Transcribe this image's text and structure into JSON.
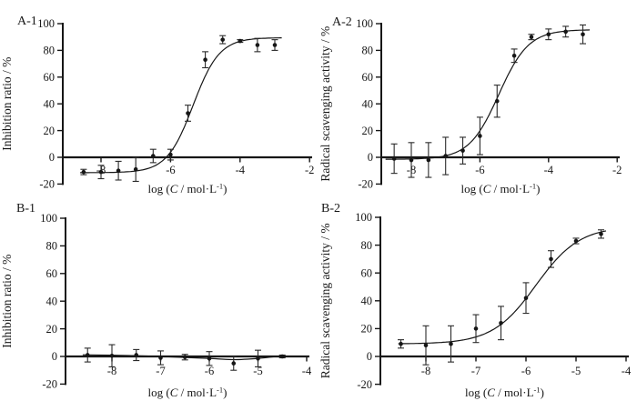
{
  "figure": {
    "background": "#ffffff",
    "foreground": "#161616",
    "x_axis_label": {
      "text": "log (C / mol·L-1)",
      "prefix": "log (",
      "variable": "C",
      "middle": " / mol·L",
      "superscript": "-1",
      "suffix": ")"
    }
  },
  "chart_data": [
    {
      "id": "A-1",
      "type": "scatter",
      "panel_label": "A-1",
      "ylabel": "Inhibition ratio / %",
      "xlabel": "log (C / mol·L-1)",
      "xlim": [
        -9.1,
        -1.9
      ],
      "x_ticks": [
        -8,
        -6,
        -4,
        -2
      ],
      "ylim": [
        -20,
        100
      ],
      "y_ticks": [
        100,
        80,
        60,
        40,
        20,
        0,
        -20
      ],
      "x": [
        -8.5,
        -8.0,
        -7.5,
        -7.0,
        -6.5,
        -6.0,
        -5.5,
        -5.0,
        -4.5,
        -4.0,
        -3.5,
        -3.0
      ],
      "y": [
        -11,
        -11,
        -10,
        -9,
        1,
        2,
        33,
        73,
        88,
        87,
        84,
        84
      ],
      "yerr": [
        2,
        5,
        7,
        9,
        5,
        4,
        6,
        6,
        3,
        1,
        5,
        4
      ],
      "fit": {
        "kind": "logistic",
        "bottom": -11.5,
        "top": 89.5,
        "logec50": -5.35,
        "hill": 1.15,
        "x_range": [
          -8.6,
          -2.8
        ]
      },
      "legend": null,
      "grid": false
    },
    {
      "id": "A-2",
      "type": "scatter",
      "panel_label": "A-2",
      "ylabel": "Radical scavenging activity / %",
      "xlabel": "log (C / mol·L-1)",
      "xlim": [
        -9.0,
        -1.9
      ],
      "x_ticks": [
        -8,
        -6,
        -4,
        -2
      ],
      "ylim": [
        -20,
        100
      ],
      "y_ticks": [
        100,
        80,
        60,
        40,
        20,
        0,
        -20
      ],
      "x": [
        -8.5,
        -8.0,
        -7.5,
        -7.0,
        -6.5,
        -6.0,
        -5.5,
        -5.0,
        -4.5,
        -4.0,
        -3.5,
        -3.0
      ],
      "y": [
        -1,
        -2,
        -2,
        1,
        5,
        16,
        42,
        76,
        90,
        92,
        94,
        92
      ],
      "yerr": [
        11,
        13,
        13,
        14,
        10,
        14,
        12,
        5,
        2,
        4,
        4,
        7
      ],
      "fit": {
        "kind": "logistic",
        "bottom": -1.5,
        "top": 95.5,
        "logec50": -5.45,
        "hill": 1.0,
        "x_range": [
          -8.75,
          -2.8
        ]
      },
      "legend": null,
      "grid": false
    },
    {
      "id": "B-1",
      "type": "scatter",
      "panel_label": "B-1",
      "ylabel": "Inhibition ratio / %",
      "xlabel": "log (C / mol·L-1)",
      "xlim": [
        -9.0,
        -3.95
      ],
      "x_ticks": [
        -8,
        -7,
        -6,
        -5,
        -4
      ],
      "ylim": [
        -20,
        100
      ],
      "y_ticks": [
        100,
        80,
        60,
        40,
        20,
        0,
        -20
      ],
      "x": [
        -8.5,
        -8.0,
        -7.5,
        -7.0,
        -6.5,
        -6.0,
        -5.5,
        -5.0,
        -4.5
      ],
      "y": [
        1,
        0.5,
        1,
        -1,
        -0.5,
        -1.5,
        -5,
        -1.5,
        0
      ],
      "yerr": [
        5,
        8,
        4,
        5,
        2,
        5,
        5,
        6,
        1
      ],
      "fit": {
        "kind": "smooth",
        "x": [
          -8.6,
          -8.0,
          -7.5,
          -7.0,
          -6.5,
          -6.0,
          -5.5,
          -5.0,
          -4.55
        ],
        "y": [
          1.2,
          0.9,
          0.5,
          0,
          -0.7,
          -1.4,
          -2.3,
          -1.4,
          0.2
        ]
      },
      "legend": null,
      "grid": false
    },
    {
      "id": "B-2",
      "type": "scatter",
      "panel_label": "B-2",
      "ylabel": "Radical scavenging activity / %",
      "xlabel": "log (C / mol·L-1)",
      "xlim": [
        -9.0,
        -3.95
      ],
      "x_ticks": [
        -8,
        -7,
        -6,
        -5,
        -4
      ],
      "ylim": [
        -20,
        100
      ],
      "y_ticks": [
        100,
        80,
        60,
        40,
        20,
        0,
        -20
      ],
      "x": [
        -8.5,
        -8.0,
        -7.5,
        -7.0,
        -6.5,
        -6.0,
        -5.5,
        -5.0,
        -4.5
      ],
      "y": [
        9,
        8,
        9,
        20,
        24,
        42,
        70,
        83,
        88
      ],
      "yerr": [
        3,
        14,
        13,
        10,
        12,
        11,
        6,
        2,
        3
      ],
      "fit": {
        "kind": "logistic",
        "bottom": 9,
        "top": 93.5,
        "logec50": -5.8,
        "hill": 1.0,
        "x_range": [
          -8.55,
          -4.4
        ]
      },
      "legend": null,
      "grid": false
    }
  ]
}
